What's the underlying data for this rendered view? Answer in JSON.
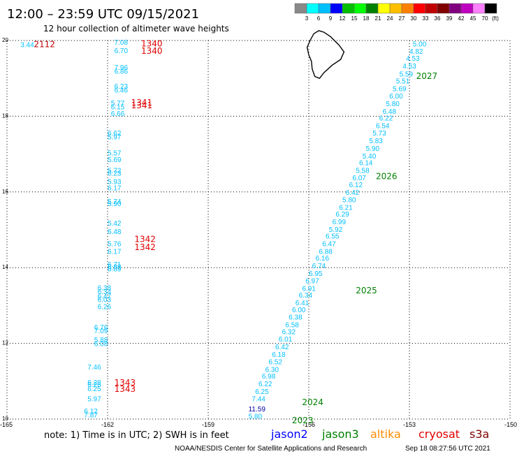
{
  "header": {
    "title": "12:00 – 23:59 UTC 09/15/2021",
    "subtitle": "12 hour collection of altimeter wave heights"
  },
  "footer": {
    "note": "note: 1) Time is in UTC; 2) SWH is in feet",
    "credit": "NOAA/NESDIS Center for Satellite Applications and Research",
    "timestamp": "Sep 18 08:27:56 UTC 2021"
  },
  "chart_data": {
    "type": "scatter",
    "xlim": [
      -165,
      -150
    ],
    "ylim": [
      10,
      20
    ],
    "x_ticks": [
      "-165",
      "-162",
      "-159",
      "-156",
      "-153",
      "-150"
    ],
    "y_ticks": [
      "10",
      "12",
      "14",
      "16",
      "18",
      "20"
    ],
    "grid": "dotted",
    "color_scale": {
      "unit": "(ft)",
      "labels": [
        "3",
        "6",
        "9",
        "12",
        "15",
        "18",
        "21",
        "24",
        "27",
        "30",
        "33",
        "36",
        "39",
        "42",
        "45",
        "70"
      ],
      "colors": [
        "#888888",
        "#00ffff",
        "#00bfff",
        "#0000ff",
        "#00bf00",
        "#00ff00",
        "#008000",
        "#ffff00",
        "#ffbf00",
        "#ff8000",
        "#ff0000",
        "#c00000",
        "#800000",
        "#800080",
        "#bf00bf",
        "#ff80ff",
        "#000000"
      ]
    },
    "legend": [
      {
        "name": "jason2",
        "color": "#0000ff"
      },
      {
        "name": "jason3",
        "color": "#008000"
      },
      {
        "name": "altika",
        "color": "#ff8c00"
      },
      {
        "name": "cryosat",
        "color": "#e00000"
      },
      {
        "name": "s3a",
        "color": "#800000"
      }
    ],
    "passes": [
      {
        "label": "2112",
        "x": -164.2,
        "y": 19.92,
        "color": "#c00000"
      },
      {
        "label": "1340",
        "x": -161.0,
        "y": 19.94,
        "color": "#e00000"
      },
      {
        "label": "1340",
        "x": -161.0,
        "y": 19.74,
        "color": "#e00000"
      },
      {
        "label": "1341",
        "x": -161.3,
        "y": 18.38,
        "color": "#e00000"
      },
      {
        "label": "1341",
        "x": -161.3,
        "y": 18.3,
        "color": "#e00000"
      },
      {
        "label": "1342",
        "x": -161.2,
        "y": 14.77,
        "color": "#e00000"
      },
      {
        "label": "1342",
        "x": -161.2,
        "y": 14.56,
        "color": "#e00000"
      },
      {
        "label": "1343",
        "x": -161.8,
        "y": 10.98,
        "color": "#e00000"
      },
      {
        "label": "1343",
        "x": -161.8,
        "y": 10.81,
        "color": "#e00000"
      },
      {
        "label": "2027",
        "x": -152.8,
        "y": 19.08,
        "color": "#008000"
      },
      {
        "label": "2026",
        "x": -154.0,
        "y": 16.43,
        "color": "#008000"
      },
      {
        "label": "2025",
        "x": -154.6,
        "y": 13.41,
        "color": "#008000"
      },
      {
        "label": "2024",
        "x": -156.2,
        "y": 10.46,
        "color": "#008000"
      },
      {
        "label": "2023",
        "x": -156.5,
        "y": 9.98,
        "color": "#008000"
      }
    ],
    "points": [
      {
        "x": -164.6,
        "y": 19.9,
        "v": "3.44",
        "color": "#00bfff"
      },
      {
        "x": -161.8,
        "y": 19.96,
        "v": "7.08",
        "color": "#00bfff"
      },
      {
        "x": -161.8,
        "y": 19.74,
        "v": "6.70",
        "color": "#00bfff"
      },
      {
        "x": -161.8,
        "y": 19.3,
        "v": "7.96",
        "color": "#00bfff"
      },
      {
        "x": -161.8,
        "y": 19.2,
        "v": "6.86",
        "color": "#00bfff"
      },
      {
        "x": -161.8,
        "y": 18.8,
        "v": "6.23",
        "color": "#00bfff"
      },
      {
        "x": -161.8,
        "y": 18.7,
        "v": "6.46",
        "color": "#00bfff"
      },
      {
        "x": -161.9,
        "y": 18.36,
        "v": "5.77",
        "color": "#00bfff"
      },
      {
        "x": -161.9,
        "y": 18.26,
        "v": "6.15",
        "color": "#00bfff"
      },
      {
        "x": -161.9,
        "y": 18.08,
        "v": "6.66",
        "color": "#00bfff"
      },
      {
        "x": -162.0,
        "y": 17.56,
        "v": "6.62",
        "color": "#00bfff"
      },
      {
        "x": -162.0,
        "y": 17.46,
        "v": "5.97",
        "color": "#00bfff"
      },
      {
        "x": -162.0,
        "y": 17.04,
        "v": "5.57",
        "color": "#00bfff"
      },
      {
        "x": -162.0,
        "y": 16.86,
        "v": "5.69",
        "color": "#00bfff"
      },
      {
        "x": -162.0,
        "y": 16.58,
        "v": "5.72",
        "color": "#00bfff"
      },
      {
        "x": -162.0,
        "y": 16.5,
        "v": "6.23",
        "color": "#00bfff"
      },
      {
        "x": -162.0,
        "y": 16.28,
        "v": "5.93",
        "color": "#00bfff"
      },
      {
        "x": -162.0,
        "y": 16.12,
        "v": "6.17",
        "color": "#00bfff"
      },
      {
        "x": -162.0,
        "y": 15.76,
        "v": "5.74",
        "color": "#00bfff"
      },
      {
        "x": -162.0,
        "y": 15.7,
        "v": "5.90",
        "color": "#00bfff"
      },
      {
        "x": -162.0,
        "y": 15.18,
        "v": "5.42",
        "color": "#00bfff"
      },
      {
        "x": -162.0,
        "y": 14.96,
        "v": "6.48",
        "color": "#00bfff"
      },
      {
        "x": -162.0,
        "y": 14.64,
        "v": "5.76",
        "color": "#00bfff"
      },
      {
        "x": -162.0,
        "y": 14.44,
        "v": "6.17",
        "color": "#00bfff"
      },
      {
        "x": -162.0,
        "y": 14.1,
        "v": "6.71",
        "color": "#00bfff"
      },
      {
        "x": -162.0,
        "y": 14.03,
        "v": "6.88",
        "color": "#00bfff"
      },
      {
        "x": -162.0,
        "y": 13.98,
        "v": "6.89",
        "color": "#00bfff"
      },
      {
        "x": -162.3,
        "y": 13.48,
        "v": "6.38",
        "color": "#00bfff"
      },
      {
        "x": -162.3,
        "y": 13.38,
        "v": "6.34",
        "color": "#00bfff"
      },
      {
        "x": -162.3,
        "y": 13.26,
        "v": "6.47",
        "color": "#00bfff"
      },
      {
        "x": -162.3,
        "y": 13.16,
        "v": "6.03",
        "color": "#00bfff"
      },
      {
        "x": -162.3,
        "y": 12.98,
        "v": "6.26",
        "color": "#00bfff"
      },
      {
        "x": -162.4,
        "y": 12.44,
        "v": "6.76",
        "color": "#00bfff"
      },
      {
        "x": -162.4,
        "y": 12.34,
        "v": "7.09",
        "color": "#00bfff"
      },
      {
        "x": -162.4,
        "y": 12.1,
        "v": "5.88",
        "color": "#00bfff"
      },
      {
        "x": -162.4,
        "y": 12.0,
        "v": "6.08",
        "color": "#00bfff"
      },
      {
        "x": -162.6,
        "y": 11.38,
        "v": "7.46",
        "color": "#00bfff"
      },
      {
        "x": -162.6,
        "y": 10.98,
        "v": "6.28",
        "color": "#00bfff"
      },
      {
        "x": -162.6,
        "y": 10.92,
        "v": "6.26",
        "color": "#00bfff"
      },
      {
        "x": -162.6,
        "y": 10.81,
        "v": "6.25",
        "color": "#00bfff"
      },
      {
        "x": -162.6,
        "y": 10.54,
        "v": "5.97",
        "color": "#00bfff"
      },
      {
        "x": -162.7,
        "y": 10.22,
        "v": "6.12",
        "color": "#00bfff"
      },
      {
        "x": -162.7,
        "y": 10.12,
        "v": "7.87",
        "color": "#00bfff"
      },
      {
        "x": -152.9,
        "y": 19.92,
        "v": "5.00",
        "color": "#00bfff"
      },
      {
        "x": -153.0,
        "y": 19.72,
        "v": "4.82",
        "color": "#00bfff"
      },
      {
        "x": -153.1,
        "y": 19.54,
        "v": "4.53",
        "color": "#00bfff"
      },
      {
        "x": -153.2,
        "y": 19.34,
        "v": "4.53",
        "color": "#00bfff"
      },
      {
        "x": -153.3,
        "y": 19.12,
        "v": "5.59",
        "color": "#00bfff"
      },
      {
        "x": -153.4,
        "y": 18.94,
        "v": "5.51",
        "color": "#00bfff"
      },
      {
        "x": -153.5,
        "y": 18.74,
        "v": "5.69",
        "color": "#00bfff"
      },
      {
        "x": -153.6,
        "y": 18.54,
        "v": "6.00",
        "color": "#00bfff"
      },
      {
        "x": -153.7,
        "y": 18.34,
        "v": "5.80",
        "color": "#00bfff"
      },
      {
        "x": -153.8,
        "y": 18.14,
        "v": "6.48",
        "color": "#00bfff"
      },
      {
        "x": -153.9,
        "y": 17.96,
        "v": "6.22",
        "color": "#00bfff"
      },
      {
        "x": -154.0,
        "y": 17.76,
        "v": "6.54",
        "color": "#00bfff"
      },
      {
        "x": -154.1,
        "y": 17.56,
        "v": "5.73",
        "color": "#00bfff"
      },
      {
        "x": -154.2,
        "y": 17.36,
        "v": "5.83",
        "color": "#00bfff"
      },
      {
        "x": -154.3,
        "y": 17.16,
        "v": "5.90",
        "color": "#00bfff"
      },
      {
        "x": -154.4,
        "y": 16.96,
        "v": "5.40",
        "color": "#00bfff"
      },
      {
        "x": -154.5,
        "y": 16.78,
        "v": "6.14",
        "color": "#00bfff"
      },
      {
        "x": -154.6,
        "y": 16.58,
        "v": "5.58",
        "color": "#00bfff"
      },
      {
        "x": -154.7,
        "y": 16.38,
        "v": "6.07",
        "color": "#00bfff"
      },
      {
        "x": -154.8,
        "y": 16.2,
        "v": "6.12",
        "color": "#00bfff"
      },
      {
        "x": -154.9,
        "y": 16.0,
        "v": "6.42",
        "color": "#00bfff"
      },
      {
        "x": -155.0,
        "y": 15.8,
        "v": "5.80",
        "color": "#00bfff"
      },
      {
        "x": -155.1,
        "y": 15.6,
        "v": "6.21",
        "color": "#00bfff"
      },
      {
        "x": -155.2,
        "y": 15.42,
        "v": "6.29",
        "color": "#00bfff"
      },
      {
        "x": -155.3,
        "y": 15.22,
        "v": "6.99",
        "color": "#00bfff"
      },
      {
        "x": -155.4,
        "y": 15.02,
        "v": "5.92",
        "color": "#00bfff"
      },
      {
        "x": -155.5,
        "y": 14.84,
        "v": "6.55",
        "color": "#00bfff"
      },
      {
        "x": -155.6,
        "y": 14.64,
        "v": "6.47",
        "color": "#00bfff"
      },
      {
        "x": -155.7,
        "y": 14.44,
        "v": "6.88",
        "color": "#00bfff"
      },
      {
        "x": -155.8,
        "y": 14.26,
        "v": "6.16",
        "color": "#00bfff"
      },
      {
        "x": -155.9,
        "y": 14.06,
        "v": "6.74",
        "color": "#00bfff"
      },
      {
        "x": -156.0,
        "y": 13.86,
        "v": "6.95",
        "color": "#00bfff"
      },
      {
        "x": -156.1,
        "y": 13.66,
        "v": "6.97",
        "color": "#00bfff"
      },
      {
        "x": -156.2,
        "y": 13.46,
        "v": "6.91",
        "color": "#00bfff"
      },
      {
        "x": -156.3,
        "y": 13.28,
        "v": "6.34",
        "color": "#00bfff"
      },
      {
        "x": -156.4,
        "y": 13.08,
        "v": "6.41",
        "color": "#00bfff"
      },
      {
        "x": -156.5,
        "y": 12.9,
        "v": "6.00",
        "color": "#00bfff"
      },
      {
        "x": -156.6,
        "y": 12.7,
        "v": "6.38",
        "color": "#00bfff"
      },
      {
        "x": -156.7,
        "y": 12.5,
        "v": "6.58",
        "color": "#00bfff"
      },
      {
        "x": -156.8,
        "y": 12.32,
        "v": "6.32",
        "color": "#00bfff"
      },
      {
        "x": -156.9,
        "y": 12.12,
        "v": "6.01",
        "color": "#00bfff"
      },
      {
        "x": -157.0,
        "y": 11.92,
        "v": "6.42",
        "color": "#00bfff"
      },
      {
        "x": -157.1,
        "y": 11.72,
        "v": "6.18",
        "color": "#00bfff"
      },
      {
        "x": -157.2,
        "y": 11.52,
        "v": "6.52",
        "color": "#00bfff"
      },
      {
        "x": -157.3,
        "y": 11.32,
        "v": "6.30",
        "color": "#00bfff"
      },
      {
        "x": -157.4,
        "y": 11.14,
        "v": "6.98",
        "color": "#00bfff"
      },
      {
        "x": -157.5,
        "y": 10.94,
        "v": "6.22",
        "color": "#00bfff"
      },
      {
        "x": -157.6,
        "y": 10.74,
        "v": "6.25",
        "color": "#00bfff"
      },
      {
        "x": -157.7,
        "y": 10.54,
        "v": "7.44",
        "color": "#00bfff"
      },
      {
        "x": -157.8,
        "y": 10.28,
        "v": "11.59",
        "color": "#0000a0"
      },
      {
        "x": -157.8,
        "y": 10.08,
        "v": "5.80",
        "color": "#00bfff"
      }
    ],
    "island": [
      [
        -155.85,
        20.18
      ],
      [
        -155.7,
        20.26
      ],
      [
        -155.55,
        20.22
      ],
      [
        -155.35,
        20.1
      ],
      [
        -155.1,
        19.88
      ],
      [
        -154.95,
        19.7
      ],
      [
        -155.05,
        19.5
      ],
      [
        -155.3,
        19.35
      ],
      [
        -155.55,
        19.15
      ],
      [
        -155.68,
        19.0
      ],
      [
        -155.82,
        19.05
      ],
      [
        -155.9,
        19.25
      ],
      [
        -155.92,
        19.45
      ],
      [
        -156.0,
        19.62
      ],
      [
        -156.05,
        19.82
      ],
      [
        -155.95,
        20.02
      ],
      [
        -155.85,
        20.18
      ]
    ]
  }
}
